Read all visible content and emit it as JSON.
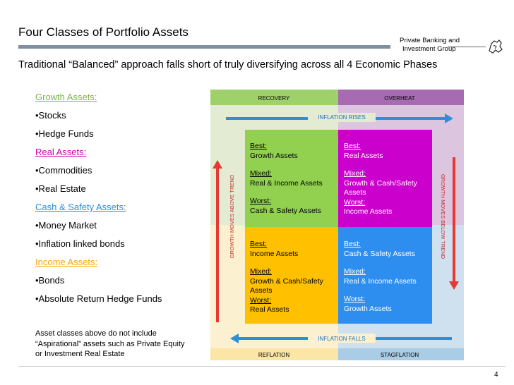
{
  "slide": {
    "title": "Four Classes of Portfolio Assets",
    "subtitle": "Traditional “Balanced” approach falls short of truly diversifying across all 4 Economic Phases",
    "brand_line1": "Private Banking and",
    "brand_line2": "Investment Group",
    "page_number": "4"
  },
  "asset_list": [
    {
      "text": "Growth Assets:",
      "kind": "heading",
      "color": "#7ab648"
    },
    {
      "text": "•Stocks",
      "kind": "item"
    },
    {
      "text": "•Hedge Funds",
      "kind": "item"
    },
    {
      "text": "Real Assets:",
      "kind": "heading",
      "color": "#cc00aa"
    },
    {
      "text": "•Commodities",
      "kind": "item"
    },
    {
      "text": "•Real Estate",
      "kind": "item"
    },
    {
      "text": "Cash & Safety Assets:",
      "kind": "heading",
      "color": "#2a8fd6"
    },
    {
      "text": "•Money Market",
      "kind": "item"
    },
    {
      "text": "•Inflation linked bonds",
      "kind": "item"
    },
    {
      "text": "Income Assets: ",
      "kind": "heading",
      "color": "#f5a800"
    },
    {
      "text": "•Bonds",
      "kind": "item"
    },
    {
      "text": "•Absolute Return Hedge Funds",
      "kind": "item"
    }
  ],
  "note": "Asset classes above do not include “Aspirational” assets such as Private Equity or Investment Real Estate",
  "matrix": {
    "phase_recovery": "RECOVERY",
    "phase_overheat": "OVERHEAT",
    "phase_reflation": "REFLATION",
    "phase_stagflation": "STAGFLATION",
    "inflation_rises": "INFLATION RISES",
    "inflation_falls": "INFLATION FALLS",
    "growth_above": "GROWTH MOVES ABOVE TREND",
    "growth_below": "GROWTH MOVES BELOW TREND",
    "colors": {
      "green": "#92d050",
      "magenta": "#cc00cc",
      "orange": "#ffc000",
      "blue": "#2e8ef0",
      "light_green": "#e3ecd2",
      "light_purple": "#dcc5df",
      "light_yellow": "#fbf0cf",
      "light_blue": "#cfe1ee",
      "header_green": "#9fd16a",
      "header_purple": "#a66bb0"
    },
    "cells": {
      "recovery": {
        "best_label": "Best:",
        "best": "Growth Assets",
        "mixed_label": "Mixed:",
        "mixed": "Real & Income Assets",
        "worst_label": "Worst:",
        "worst": "Cash & Safety Assets"
      },
      "overheat": {
        "best_label": "Best:",
        "best": "Real Assets",
        "mixed_label": "Mixed:",
        "mixed": "Growth & Cash/Safety Assets",
        "worst_label": "Worst:",
        "worst": "Income Assets"
      },
      "reflation": {
        "best_label": "Best:",
        "best": "Income Assets",
        "mixed_label": "Mixed:",
        "mixed": "Growth & Cash/Safety Assets",
        "worst_label": "Worst:",
        "worst": "Real Assets"
      },
      "stagflation": {
        "best_label": "Best:",
        "best": "Cash & Safety Assets",
        "mixed_label": "Mixed:",
        "mixed": "Real & Income Assets",
        "worst_label": "Worst:",
        "worst": "Growth Assets"
      }
    }
  }
}
